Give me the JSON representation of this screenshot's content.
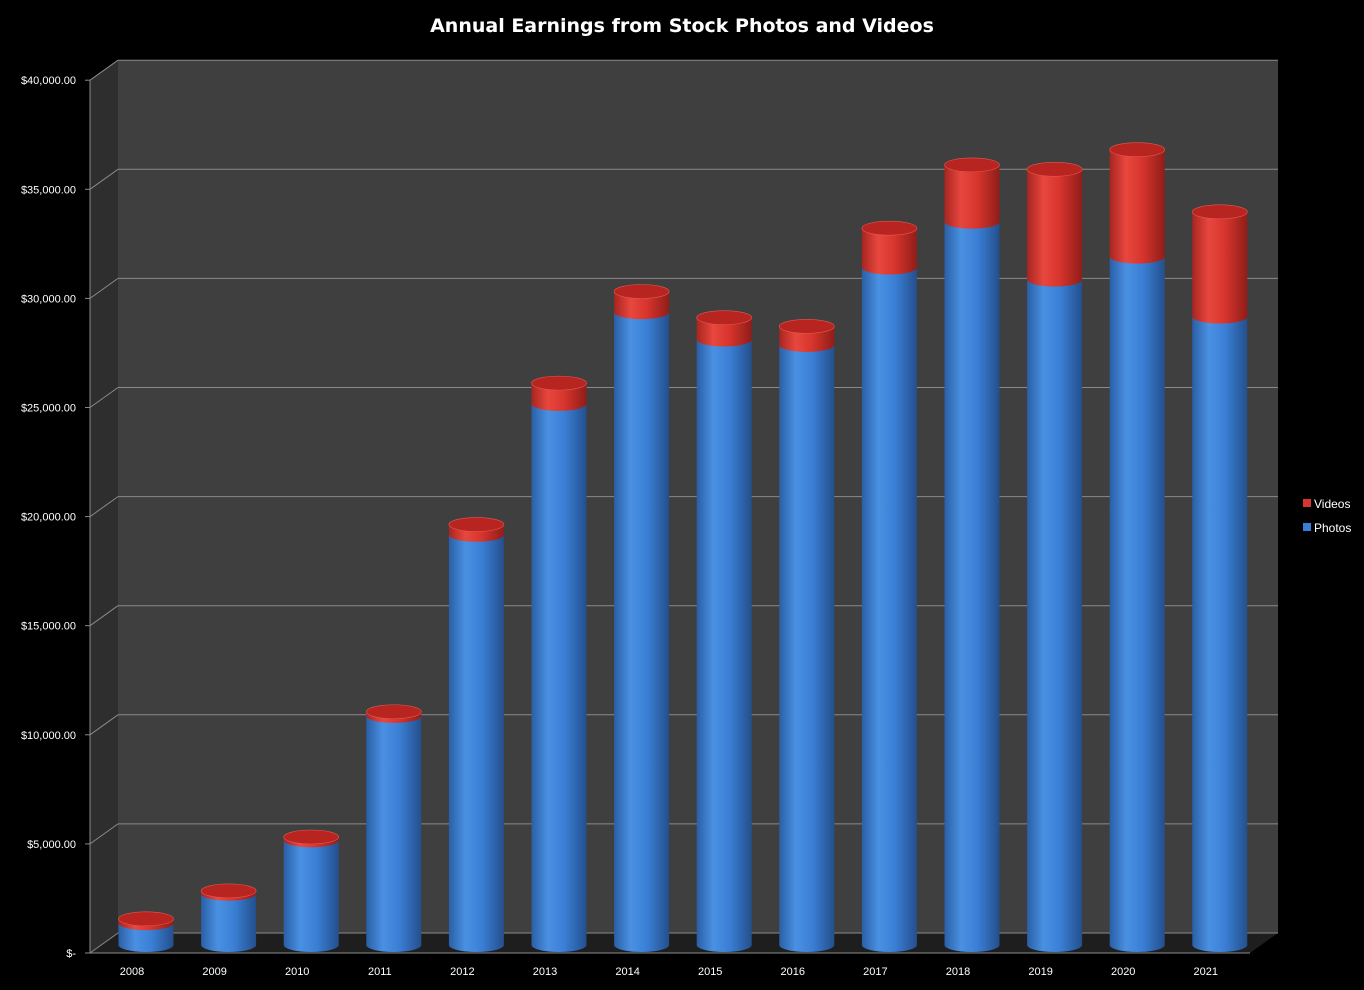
{
  "chart_data": {
    "type": "bar",
    "subtype": "3d-stacked-cylinder",
    "title": "Annual Earnings from Stock Photos and Videos",
    "xlabel": "",
    "ylabel": "",
    "categories": [
      "2008",
      "2009",
      "2010",
      "2011",
      "2012",
      "2013",
      "2014",
      "2015",
      "2016",
      "2017",
      "2018",
      "2019",
      "2020",
      "2021"
    ],
    "series": [
      {
        "name": "Photos",
        "color": "#3a7fd5",
        "values": [
          1000,
          2350,
          4800,
          10500,
          18800,
          24800,
          29000,
          27750,
          27500,
          31050,
          33150,
          30500,
          31550,
          28800
        ]
      },
      {
        "name": "Videos",
        "color": "#d6342c",
        "values": [
          200,
          130,
          150,
          190,
          470,
          950,
          950,
          1000,
          850,
          1800,
          2600,
          5050,
          4900,
          4800
        ]
      }
    ],
    "ylim": [
      0,
      40000
    ],
    "yticks": [
      "$-",
      "$5,000.00",
      "$10,000.00",
      "$15,000.00",
      "$20,000.00",
      "$25,000.00",
      "$30,000.00",
      "$35,000.00",
      "$40,000.00"
    ],
    "grid": true,
    "legend_position": "right",
    "colors": {
      "background": "#000000",
      "wall": "#3f3f3f",
      "side_wall": "#2e2e2e",
      "floor": "#1e1e1e",
      "grid": "#8a8a8a"
    }
  }
}
